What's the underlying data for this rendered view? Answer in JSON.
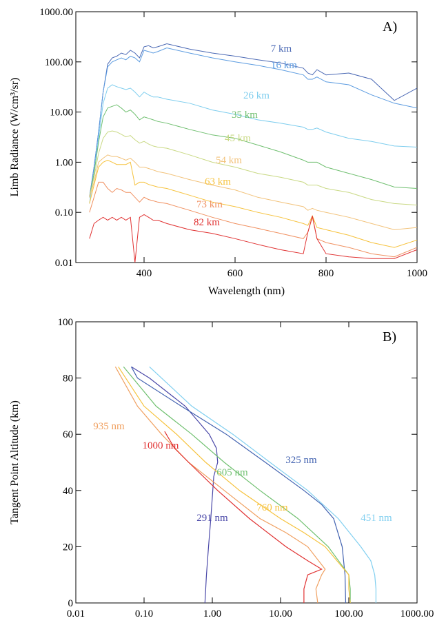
{
  "chart_data": [
    {
      "type": "line",
      "panel_label": "A)",
      "xlabel": "Wavelength (nm)",
      "ylabel": "Limb Radiance (W/cm³/sr)",
      "xlim": [
        250,
        1000
      ],
      "xticks": [
        400,
        600,
        800,
        1000
      ],
      "ylim": [
        0.01,
        1000
      ],
      "yscale": "log",
      "yticks": [
        0.01,
        {
          "value": 0.1,
          "label": "0.10"
        },
        {
          "value": 1,
          "label": "1.00"
        },
        {
          "value": 10,
          "label": "10.00"
        },
        {
          "value": 100,
          "label": "100.00"
        },
        {
          "value": 1000,
          "label": "1000.00"
        }
      ],
      "x": [
        280,
        290,
        300,
        310,
        320,
        330,
        340,
        350,
        360,
        370,
        380,
        390,
        400,
        410,
        420,
        430,
        450,
        500,
        550,
        600,
        650,
        700,
        750,
        760,
        770,
        780,
        800,
        850,
        900,
        950,
        1000
      ],
      "series": [
        {
          "name": "7 km",
          "color": "#4a68b4",
          "values": [
            0.2,
            0.8,
            4,
            25,
            90,
            120,
            130,
            150,
            140,
            170,
            150,
            120,
            200,
            210,
            190,
            200,
            230,
            180,
            150,
            130,
            110,
            95,
            75,
            60,
            55,
            70,
            55,
            60,
            45,
            17,
            30
          ]
        },
        {
          "name": "16 km",
          "color": "#5b9be0",
          "values": [
            0.2,
            0.8,
            4,
            25,
            80,
            100,
            110,
            120,
            110,
            130,
            120,
            100,
            170,
            160,
            150,
            160,
            190,
            150,
            120,
            100,
            85,
            70,
            55,
            45,
            45,
            50,
            40,
            35,
            22,
            15,
            12
          ]
        },
        {
          "name": "26 km",
          "color": "#7dcdee",
          "values": [
            0.15,
            0.6,
            3,
            15,
            30,
            35,
            32,
            30,
            28,
            30,
            25,
            20,
            25,
            22,
            20,
            20,
            18,
            15,
            11,
            9,
            7,
            6,
            5,
            4.5,
            4.5,
            4.8,
            4,
            3,
            2.6,
            2.1,
            2
          ]
        },
        {
          "name": "35 km",
          "color": "#6fbf6f",
          "values": [
            0.2,
            0.6,
            2.5,
            8,
            12,
            13,
            14,
            12,
            10,
            11,
            9,
            7,
            8,
            7.5,
            7,
            6.5,
            6,
            4.5,
            3.5,
            3,
            2.2,
            1.6,
            1.1,
            1,
            1,
            1,
            0.8,
            0.6,
            0.45,
            0.32,
            0.3
          ]
        },
        {
          "name": "45 km",
          "color": "#c9d984",
          "values": [
            0.2,
            0.5,
            1.5,
            3,
            4,
            4.2,
            4,
            3.6,
            3.2,
            3.4,
            2.8,
            2.4,
            2.6,
            2.3,
            2.1,
            2,
            1.9,
            1.4,
            1,
            0.8,
            0.6,
            0.5,
            0.4,
            0.35,
            0.35,
            0.35,
            0.3,
            0.25,
            0.18,
            0.15,
            0.14
          ]
        },
        {
          "name": "54 km",
          "color": "#f2c27a",
          "values": [
            0.2,
            0.4,
            1,
            1.2,
            1.4,
            1.3,
            1.3,
            1.2,
            1.1,
            1.2,
            1,
            0.8,
            0.8,
            0.75,
            0.7,
            0.65,
            0.6,
            0.45,
            0.35,
            0.28,
            0.2,
            0.16,
            0.13,
            0.11,
            0.12,
            0.11,
            0.1,
            0.08,
            0.06,
            0.045,
            0.05
          ]
        },
        {
          "name": "63 km",
          "color": "#f6c23c",
          "values": [
            0.15,
            0.35,
            0.8,
            1,
            1.1,
            1,
            0.9,
            0.9,
            0.9,
            1,
            0.35,
            0.4,
            0.4,
            0.36,
            0.34,
            0.32,
            0.3,
            0.22,
            0.16,
            0.13,
            0.1,
            0.08,
            0.06,
            0.055,
            0.085,
            0.05,
            0.045,
            0.035,
            0.025,
            0.02,
            0.028
          ]
        },
        {
          "name": "73 km",
          "color": "#f09060",
          "values": [
            0.1,
            0.2,
            0.4,
            0.4,
            0.3,
            0.25,
            0.3,
            0.28,
            0.25,
            0.25,
            0.2,
            0.16,
            0.2,
            0.18,
            0.17,
            0.16,
            0.15,
            0.11,
            0.08,
            0.06,
            0.048,
            0.038,
            0.03,
            0.04,
            0.08,
            0.03,
            0.025,
            0.02,
            0.015,
            0.013,
            0.02
          ]
        },
        {
          "name": "82 km",
          "color": "#e03030",
          "values": [
            0.03,
            0.06,
            0.07,
            0.08,
            0.07,
            0.08,
            0.07,
            0.08,
            0.07,
            0.08,
            0.01,
            0.08,
            0.09,
            0.08,
            0.07,
            0.07,
            0.06,
            0.045,
            0.038,
            0.03,
            0.023,
            0.018,
            0.015,
            0.04,
            0.085,
            0.03,
            0.015,
            0.013,
            0.012,
            0.012,
            0.018
          ]
        }
      ]
    },
    {
      "type": "profile",
      "panel_label": "B)",
      "xlabel": "Limb Radiance (W/cm³/sr)",
      "ylabel": "Tangent Point Altitude (km)",
      "xlim": [
        0.01,
        1000
      ],
      "xscale": "log",
      "xticks": [
        0.01,
        {
          "value": 0.1,
          "label": "0.10"
        },
        {
          "value": 1,
          "label": "1.00"
        },
        {
          "value": 10,
          "label": "10.00"
        },
        {
          "value": 100,
          "label": "100.00"
        },
        {
          "value": 1000,
          "label": "1000.00"
        }
      ],
      "ylim": [
        0,
        100
      ],
      "yticks": [
        0,
        20,
        40,
        60,
        80,
        100
      ],
      "series": [
        {
          "name": "291 nm",
          "color": "#4a48a8",
          "x": [
            0.065,
            0.12,
            0.4,
            0.9,
            1.15,
            1.2,
            1.05,
            0.95,
            0.88,
            0.82,
            0.78
          ],
          "y": [
            84,
            80,
            70,
            60,
            55,
            50,
            45,
            30,
            20,
            10,
            0
          ]
        },
        {
          "name": "325 nm",
          "color": "#4262b0",
          "x": [
            0.065,
            0.08,
            0.35,
            1.6,
            6,
            22,
            40,
            60,
            80,
            88,
            90
          ],
          "y": [
            84,
            80,
            70,
            60,
            50,
            40,
            35,
            30,
            20,
            10,
            0
          ]
        },
        {
          "name": "451 nm",
          "color": "#80cff0",
          "x": [
            0.12,
            0.5,
            2,
            7,
            25,
            70,
            150,
            210,
            240,
            250,
            250
          ],
          "y": [
            84,
            70,
            60,
            50,
            40,
            30,
            20,
            15,
            10,
            5,
            0
          ]
        },
        {
          "name": "605 nm",
          "color": "#70c070",
          "x": [
            0.05,
            0.15,
            0.5,
            1.5,
            5,
            18,
            50,
            100,
            105,
            105
          ],
          "y": [
            84,
            70,
            60,
            50,
            40,
            30,
            20,
            10,
            5,
            0
          ]
        },
        {
          "name": "760 nm",
          "color": "#f6c23c",
          "x": [
            0.042,
            0.1,
            0.3,
            0.8,
            2.5,
            10,
            22,
            45,
            100,
            100,
            105
          ],
          "y": [
            84,
            70,
            60,
            50,
            40,
            30,
            25,
            20,
            10,
            5,
            0
          ]
        },
        {
          "name": "935 nm",
          "color": "#f0a060",
          "x": [
            0.038,
            0.08,
            0.18,
            0.45,
            1.5,
            5,
            12,
            25,
            45,
            40,
            33,
            35
          ],
          "y": [
            84,
            70,
            60,
            50,
            40,
            30,
            25,
            20,
            12,
            10,
            5,
            0
          ]
        },
        {
          "name": "1000 nm",
          "color": "#e03030",
          "x": [
            0.2,
            0.28,
            0.45,
            1.2,
            3.5,
            12,
            25,
            40,
            25,
            22,
            22
          ],
          "y": [
            61,
            55,
            50,
            40,
            30,
            20,
            15,
            12,
            10,
            5,
            0
          ]
        }
      ]
    }
  ]
}
